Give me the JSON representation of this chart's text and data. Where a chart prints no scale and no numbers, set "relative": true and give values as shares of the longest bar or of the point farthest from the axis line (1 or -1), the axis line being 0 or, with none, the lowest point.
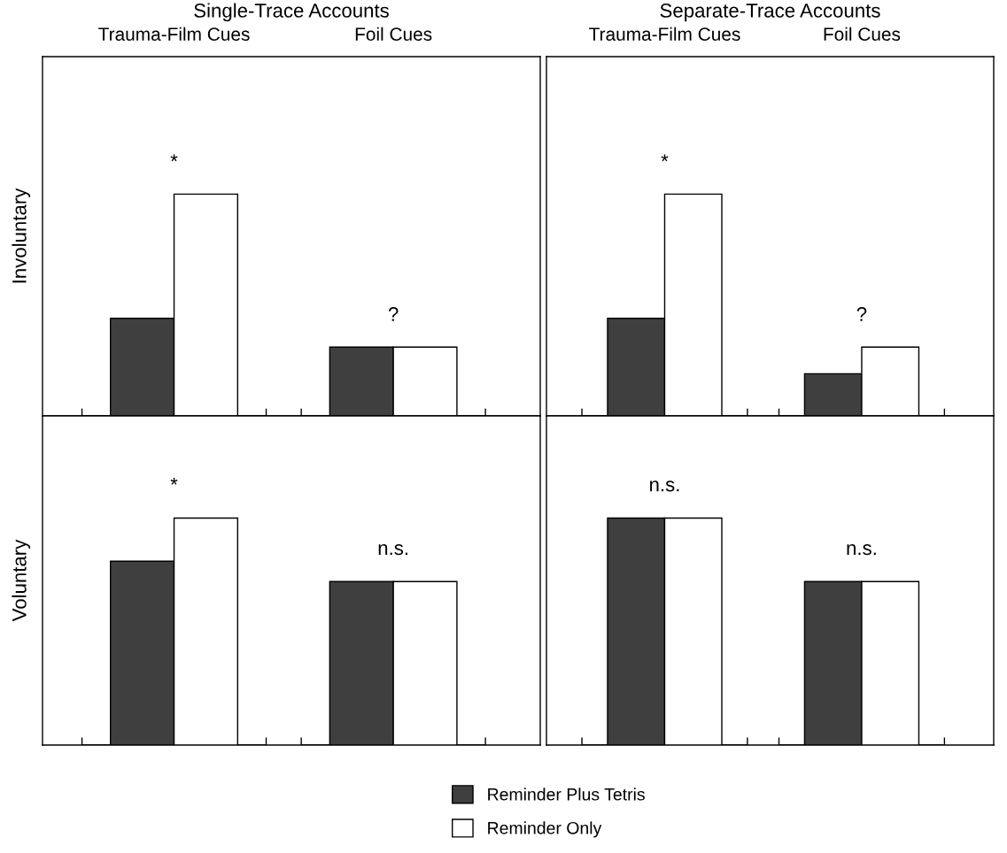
{
  "chart_data": [
    {
      "type": "bar",
      "title": "Single-Trace Accounts",
      "ylabel": "Involuntary",
      "categories": [
        "Trauma-Film Cues",
        "Foil Cues"
      ],
      "relative": true,
      "series": [
        {
          "color": "#3f3f3f",
          "values": [
            0.44,
            0.31
          ]
        },
        {
          "color": "#ffffff",
          "values": [
            1,
            0.31
          ]
        }
      ],
      "annotations": [
        "*",
        "?"
      ]
    },
    {
      "type": "bar",
      "title": "Separate-Trace Accounts",
      "categories": [
        "Trauma-Film Cues",
        "Foil Cues"
      ],
      "relative": true,
      "series": [
        {
          "color": "#3f3f3f",
          "values": [
            0.44,
            0.19
          ]
        },
        {
          "color": "#ffffff",
          "values": [
            1,
            0.31
          ]
        }
      ],
      "annotations": [
        "*",
        "?"
      ]
    },
    {
      "type": "bar",
      "ylabel": "Voluntary",
      "categories": [
        null,
        null
      ],
      "relative": true,
      "series": [
        {
          "color": "#3f3f3f",
          "values": [
            0.81,
            0.72
          ]
        },
        {
          "color": "#ffffff",
          "values": [
            1,
            0.72
          ]
        }
      ],
      "annotations": [
        "*",
        "n.s."
      ]
    },
    {
      "type": "bar",
      "categories": [
        null,
        null
      ],
      "relative": true,
      "legend": "bottom",
      "series": [
        {
          "name": "Reminder Plus Tetris",
          "color": "#3f3f3f",
          "values": [
            1,
            0.72
          ]
        },
        {
          "name": "Reminder Only",
          "color": "#ffffff",
          "values": [
            1,
            0.72
          ]
        }
      ],
      "annotations": [
        "n.s.",
        "n.s."
      ]
    }
  ]
}
